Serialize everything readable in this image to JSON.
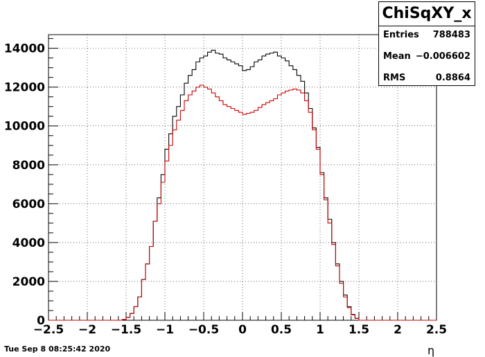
{
  "chart_data": {
    "type": "histogram-step",
    "xlabel": "η",
    "ylabel": "",
    "xlim": [
      -2.5,
      2.5
    ],
    "ylim": [
      0,
      14700
    ],
    "x_ticks": [
      "−2.5",
      "−2",
      "−1.5",
      "−1",
      "−0.5",
      "0",
      "0.5",
      "1",
      "1.5",
      "2",
      "2.5"
    ],
    "y_ticks": [
      "0",
      "2000",
      "4000",
      "6000",
      "8000",
      "10000",
      "12000",
      "14000"
    ],
    "x_tick_values": [
      -2.5,
      -2,
      -1.5,
      -1,
      -0.5,
      0,
      0.5,
      1,
      1.5,
      2,
      2.5
    ],
    "y_tick_values": [
      0,
      2000,
      4000,
      6000,
      8000,
      10000,
      12000,
      14000
    ],
    "grid": true,
    "bin_edges_x": [
      -2.5,
      2.5
    ],
    "n_bins": 100,
    "series": [
      {
        "color": "#000000",
        "values": [
          0,
          0,
          0,
          0,
          0,
          0,
          0,
          0,
          0,
          0,
          0,
          0,
          0,
          0,
          0,
          0,
          0,
          0,
          0,
          40,
          150,
          350,
          700,
          1200,
          2100,
          2900,
          3800,
          5100,
          6300,
          7500,
          8800,
          9600,
          10500,
          11000,
          11600,
          12200,
          12600,
          12900,
          13300,
          13500,
          13600,
          13800,
          13900,
          13750,
          13700,
          13500,
          13400,
          13300,
          13200,
          13100,
          12850,
          12900,
          13050,
          13300,
          13400,
          13600,
          13700,
          13750,
          13800,
          13600,
          13500,
          13350,
          13100,
          12900,
          12600,
          12300,
          11700,
          10900,
          9900,
          8900,
          7600,
          6300,
          5200,
          4000,
          2900,
          2000,
          1300,
          700,
          300,
          100,
          0,
          0,
          0,
          0,
          0,
          0,
          0,
          0,
          0,
          0,
          0,
          0,
          0,
          0,
          0,
          0,
          0,
          0,
          0,
          0
        ]
      },
      {
        "color": "#cc0000",
        "values": [
          0,
          0,
          0,
          0,
          0,
          0,
          0,
          0,
          0,
          0,
          0,
          0,
          0,
          0,
          0,
          0,
          0,
          0,
          0,
          40,
          150,
          350,
          700,
          1200,
          2100,
          2900,
          3800,
          5100,
          6000,
          7100,
          8200,
          9000,
          9800,
          10300,
          10800,
          11300,
          11600,
          11800,
          12000,
          12100,
          12000,
          11900,
          11700,
          11500,
          11300,
          11100,
          11000,
          10900,
          10800,
          10700,
          10600,
          10650,
          10700,
          10800,
          10950,
          11100,
          11200,
          11300,
          11400,
          11600,
          11700,
          11800,
          11850,
          11900,
          11850,
          11700,
          11300,
          10700,
          9800,
          8800,
          7500,
          6200,
          5000,
          3900,
          2800,
          1900,
          1200,
          650,
          280,
          90,
          0,
          0,
          0,
          0,
          0,
          0,
          0,
          0,
          0,
          0,
          0,
          0,
          0,
          0,
          0,
          0,
          0,
          0,
          0,
          0
        ]
      }
    ]
  },
  "stats_box": {
    "title": "ChiSqXY_x",
    "entries_label": "Entries",
    "entries_value": "788483",
    "mean_label": "Mean",
    "mean_value": "−0.006602",
    "rms_label": "RMS",
    "rms_value": "0.8864"
  },
  "footer": {
    "datestamp": "Tue Sep  8 08:25:42 2020"
  }
}
